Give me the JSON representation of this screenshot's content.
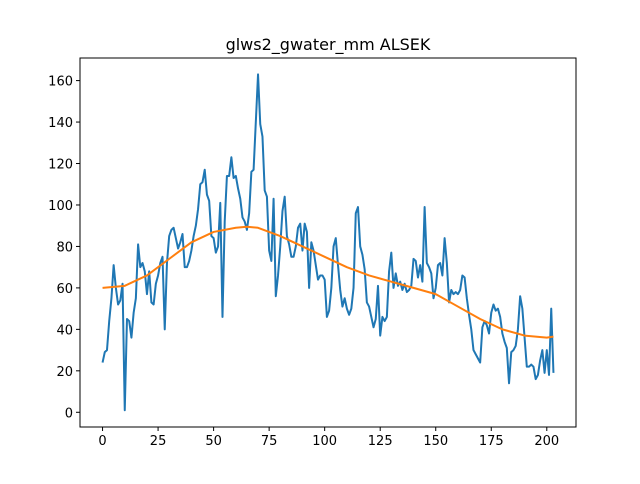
{
  "chart_data": {
    "type": "line",
    "title": "glws2_gwater_mm ALSEK",
    "xlim": [
      -10.15,
      213.15
    ],
    "ylim": [
      -7.1,
      170.9
    ],
    "xticks": [
      0,
      25,
      50,
      75,
      100,
      125,
      150,
      175,
      200
    ],
    "yticks": [
      0,
      20,
      40,
      60,
      80,
      100,
      120,
      140,
      160
    ],
    "series": [
      {
        "color": "#1f77b4",
        "x": [
          0,
          1,
          2,
          3,
          4,
          5,
          6,
          7,
          8,
          9,
          10,
          11,
          12,
          13,
          14,
          15,
          16,
          17,
          18,
          19,
          20,
          21,
          22,
          23,
          24,
          25,
          26,
          27,
          28,
          29,
          30,
          31,
          32,
          33,
          34,
          35,
          36,
          37,
          38,
          39,
          40,
          41,
          42,
          43,
          44,
          45,
          46,
          47,
          48,
          49,
          50,
          51,
          52,
          53,
          54,
          55,
          56,
          57,
          58,
          59,
          60,
          61,
          62,
          63,
          64,
          65,
          66,
          67,
          68,
          69,
          70,
          71,
          72,
          73,
          74,
          75,
          76,
          77,
          78,
          79,
          80,
          81,
          82,
          83,
          84,
          85,
          86,
          87,
          88,
          89,
          90,
          91,
          92,
          93,
          94,
          95,
          96,
          97,
          98,
          99,
          100,
          101,
          102,
          103,
          104,
          105,
          106,
          107,
          108,
          109,
          110,
          111,
          112,
          113,
          114,
          115,
          116,
          117,
          118,
          119,
          120,
          121,
          122,
          123,
          124,
          125,
          126,
          127,
          128,
          129,
          130,
          131,
          132,
          133,
          134,
          135,
          136,
          137,
          138,
          139,
          140,
          141,
          142,
          143,
          144,
          145,
          146,
          147,
          148,
          149,
          150,
          151,
          152,
          153,
          154,
          155,
          156,
          157,
          158,
          159,
          160,
          161,
          162,
          163,
          164,
          165,
          166,
          167,
          168,
          169,
          170,
          171,
          172,
          173,
          174,
          175,
          176,
          177,
          178,
          179,
          180,
          181,
          182,
          183,
          184,
          185,
          186,
          187,
          188,
          189,
          190,
          191,
          192,
          193,
          194,
          195,
          196,
          197,
          198,
          199,
          200,
          201,
          202,
          203
        ],
        "values": [
          24,
          29,
          30,
          44,
          55,
          71,
          60,
          52,
          54,
          62,
          1,
          45,
          44,
          36,
          48,
          55,
          81,
          70,
          72,
          68,
          57,
          68,
          53,
          52,
          62,
          66,
          72,
          75,
          40,
          72,
          85,
          88,
          89,
          84,
          79,
          82,
          86,
          70,
          70,
          73,
          78,
          85,
          90,
          98,
          110,
          111,
          117,
          105,
          102,
          85,
          84,
          77,
          80,
          101,
          46,
          92,
          114,
          114,
          123,
          113,
          114,
          108,
          103,
          94,
          92,
          88,
          96,
          116,
          117,
          140,
          163,
          139,
          133,
          107,
          104,
          78,
          73,
          103,
          56,
          66,
          80,
          97,
          104,
          85,
          81,
          75,
          75,
          80,
          89,
          91,
          78,
          91,
          87,
          60,
          82,
          78,
          71,
          64,
          66,
          66,
          64,
          46,
          49,
          60,
          80,
          84,
          71,
          59,
          51,
          55,
          50,
          47,
          50,
          60,
          96,
          99,
          80,
          76,
          69,
          53,
          51,
          46,
          41,
          45,
          61,
          37,
          46,
          44,
          46,
          68,
          77,
          60,
          67,
          61,
          63,
          59,
          62,
          58,
          59,
          61,
          74,
          73,
          65,
          71,
          63,
          99,
          72,
          70,
          67,
          55,
          60,
          71,
          72,
          66,
          84,
          72,
          53,
          59,
          57,
          58,
          57,
          59,
          66,
          65,
          55,
          47,
          40,
          30,
          28,
          26,
          24,
          41,
          44,
          42,
          38,
          48,
          52,
          49,
          50,
          46,
          38,
          34,
          31,
          14,
          29,
          30,
          32,
          40,
          56,
          50,
          36,
          22,
          22,
          23,
          22,
          16,
          18,
          25,
          30,
          19,
          30,
          18,
          50,
          19
        ]
      },
      {
        "color": "#ff7f0e",
        "x": [
          0,
          10,
          20,
          30,
          40,
          50,
          60,
          65,
          70,
          80,
          90,
          100,
          110,
          120,
          130,
          140,
          150,
          160,
          170,
          180,
          190,
          200,
          203
        ],
        "values": [
          60,
          61,
          66,
          74,
          82,
          87,
          89,
          89.5,
          89,
          85,
          80,
          75,
          70,
          66,
          63,
          60,
          57,
          51,
          45,
          40,
          37,
          36,
          36.5
        ]
      }
    ]
  }
}
